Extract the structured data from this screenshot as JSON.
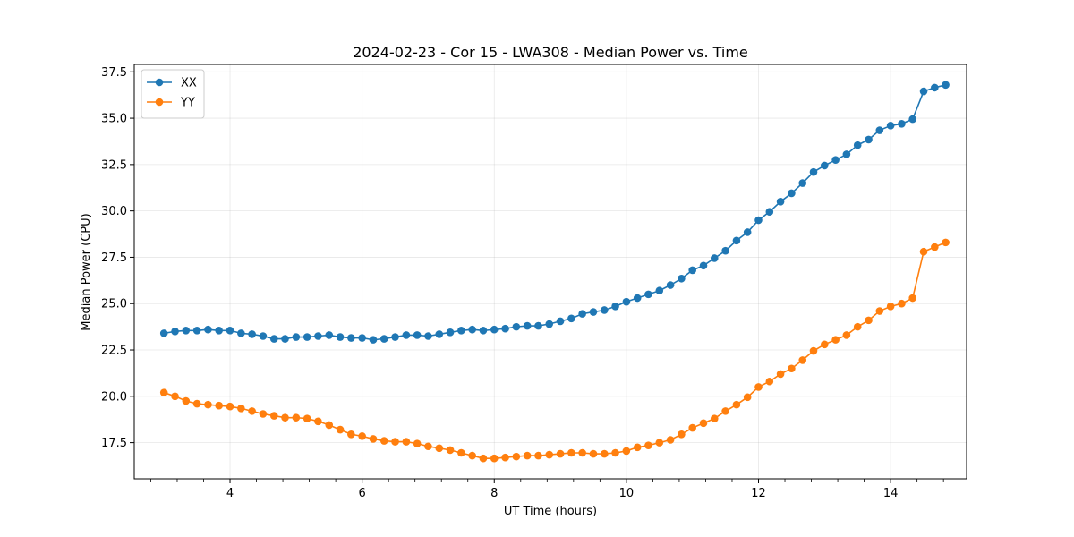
{
  "chart_data": {
    "type": "line",
    "title": "2024-02-23 - Cor 15 - LWA308 - Median Power vs. Time",
    "xlabel": "UT Time (hours)",
    "ylabel": "Median Power (CPU)",
    "xlim": [
      2.55,
      15.15
    ],
    "ylim": [
      15.55,
      37.9
    ],
    "xticks": [
      4,
      6,
      8,
      10,
      12,
      14
    ],
    "xtick_labels": [
      "4",
      "6",
      "8",
      "10",
      "12",
      "14"
    ],
    "xminor_step": 0.4,
    "yticks": [
      17.5,
      20.0,
      22.5,
      25.0,
      27.5,
      30.0,
      32.5,
      35.0,
      37.5
    ],
    "ytick_labels": [
      "17.5",
      "20.0",
      "22.5",
      "25.0",
      "27.5",
      "30.0",
      "32.5",
      "35.0",
      "37.5"
    ],
    "grid": true,
    "legend_position": "top-left",
    "x": [
      3.0,
      3.167,
      3.333,
      3.5,
      3.667,
      3.833,
      4.0,
      4.167,
      4.333,
      4.5,
      4.667,
      4.833,
      5.0,
      5.167,
      5.333,
      5.5,
      5.667,
      5.833,
      6.0,
      6.167,
      6.333,
      6.5,
      6.667,
      6.833,
      7.0,
      7.167,
      7.333,
      7.5,
      7.667,
      7.833,
      8.0,
      8.167,
      8.333,
      8.5,
      8.667,
      8.833,
      9.0,
      9.167,
      9.333,
      9.5,
      9.667,
      9.833,
      10.0,
      10.167,
      10.333,
      10.5,
      10.667,
      10.833,
      11.0,
      11.167,
      11.333,
      11.5,
      11.667,
      11.833,
      12.0,
      12.167,
      12.333,
      12.5,
      12.667,
      12.833,
      13.0,
      13.167,
      13.333,
      13.5,
      13.667,
      13.833,
      14.0,
      14.167,
      14.333,
      14.5,
      14.667,
      14.833
    ],
    "series": [
      {
        "name": "XX",
        "color": "#1f77b4",
        "values": [
          23.4,
          23.5,
          23.55,
          23.55,
          23.6,
          23.55,
          23.55,
          23.4,
          23.35,
          23.25,
          23.1,
          23.1,
          23.2,
          23.2,
          23.25,
          23.3,
          23.2,
          23.15,
          23.15,
          23.05,
          23.1,
          23.2,
          23.3,
          23.3,
          23.25,
          23.35,
          23.45,
          23.55,
          23.6,
          23.55,
          23.6,
          23.65,
          23.75,
          23.8,
          23.8,
          23.9,
          24.05,
          24.2,
          24.45,
          24.55,
          24.65,
          24.85,
          25.1,
          25.3,
          25.5,
          25.7,
          26.0,
          26.35,
          26.8,
          27.05,
          27.45,
          27.85,
          28.4,
          28.85,
          29.5,
          29.95,
          30.5,
          30.95,
          31.5,
          32.1,
          32.45,
          32.75,
          33.05,
          33.55,
          33.85,
          34.35,
          34.6,
          34.7,
          34.95,
          36.45,
          36.65,
          36.8
        ]
      },
      {
        "name": "YY",
        "color": "#ff7f0e",
        "values": [
          20.2,
          20.0,
          19.75,
          19.6,
          19.55,
          19.5,
          19.45,
          19.35,
          19.2,
          19.05,
          18.95,
          18.85,
          18.85,
          18.8,
          18.65,
          18.45,
          18.2,
          17.95,
          17.85,
          17.7,
          17.6,
          17.55,
          17.55,
          17.45,
          17.3,
          17.2,
          17.1,
          16.95,
          16.8,
          16.65,
          16.65,
          16.7,
          16.75,
          16.8,
          16.8,
          16.85,
          16.9,
          16.95,
          16.95,
          16.9,
          16.9,
          16.95,
          17.05,
          17.25,
          17.35,
          17.5,
          17.65,
          17.95,
          18.3,
          18.55,
          18.8,
          19.2,
          19.55,
          19.95,
          20.5,
          20.8,
          21.2,
          21.5,
          21.95,
          22.45,
          22.8,
          23.05,
          23.3,
          23.75,
          24.1,
          24.6,
          24.85,
          25.0,
          25.3,
          27.8,
          28.05,
          28.3
        ]
      }
    ]
  }
}
